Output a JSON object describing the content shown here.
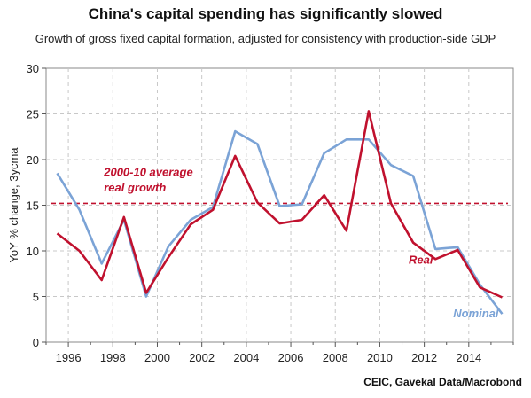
{
  "chart_data": {
    "type": "line",
    "title": "China's capital spending has significantly slowed",
    "subtitle": "Growth of gross fixed capital formation, adjusted for consistency with production-side GDP",
    "ylabel": "YoY % change, 3ycma",
    "xlabel": "",
    "source": "CEIC, Gavekal Data/Macrobond",
    "xlim": [
      1995,
      2016
    ],
    "ylim": [
      0,
      30
    ],
    "y_ticks": [
      0,
      5,
      10,
      15,
      20,
      25,
      30
    ],
    "x_ticks": [
      1996,
      1998,
      2000,
      2002,
      2004,
      2006,
      2008,
      2010,
      2012,
      2014
    ],
    "grid": true,
    "x": [
      1995.5,
      1996.5,
      1997.5,
      1998.5,
      1999.5,
      2000.5,
      2001.5,
      2002.5,
      2003.5,
      2004.5,
      2005.5,
      2006.5,
      2007.5,
      2008.5,
      2009.5,
      2010.5,
      2011.5,
      2012.5,
      2013.5,
      2014.5,
      2015.5
    ],
    "series": [
      {
        "name": "Nominal",
        "color": "#7ba3d6",
        "values": [
          18.5,
          14.5,
          8.6,
          13.4,
          5.0,
          10.5,
          13.4,
          14.8,
          23.1,
          21.7,
          14.9,
          15.1,
          20.7,
          22.2,
          22.2,
          19.4,
          18.2,
          10.2,
          10.4,
          6.3,
          3.1
        ]
      },
      {
        "name": "Real",
        "color": "#c0112e",
        "values": [
          11.9,
          10.0,
          6.8,
          13.7,
          5.4,
          9.3,
          12.9,
          14.5,
          20.4,
          15.3,
          13.0,
          13.4,
          16.1,
          12.2,
          25.3,
          15.2,
          10.9,
          9.1,
          10.1,
          6.0,
          4.9
        ]
      }
    ],
    "reference_line": {
      "value": 15.2,
      "label_line1": "2000-10 average",
      "label_line2": "real growth",
      "color": "#c0112e"
    },
    "annotations": {
      "real_label": "Real",
      "nominal_label": "Nominal"
    }
  }
}
